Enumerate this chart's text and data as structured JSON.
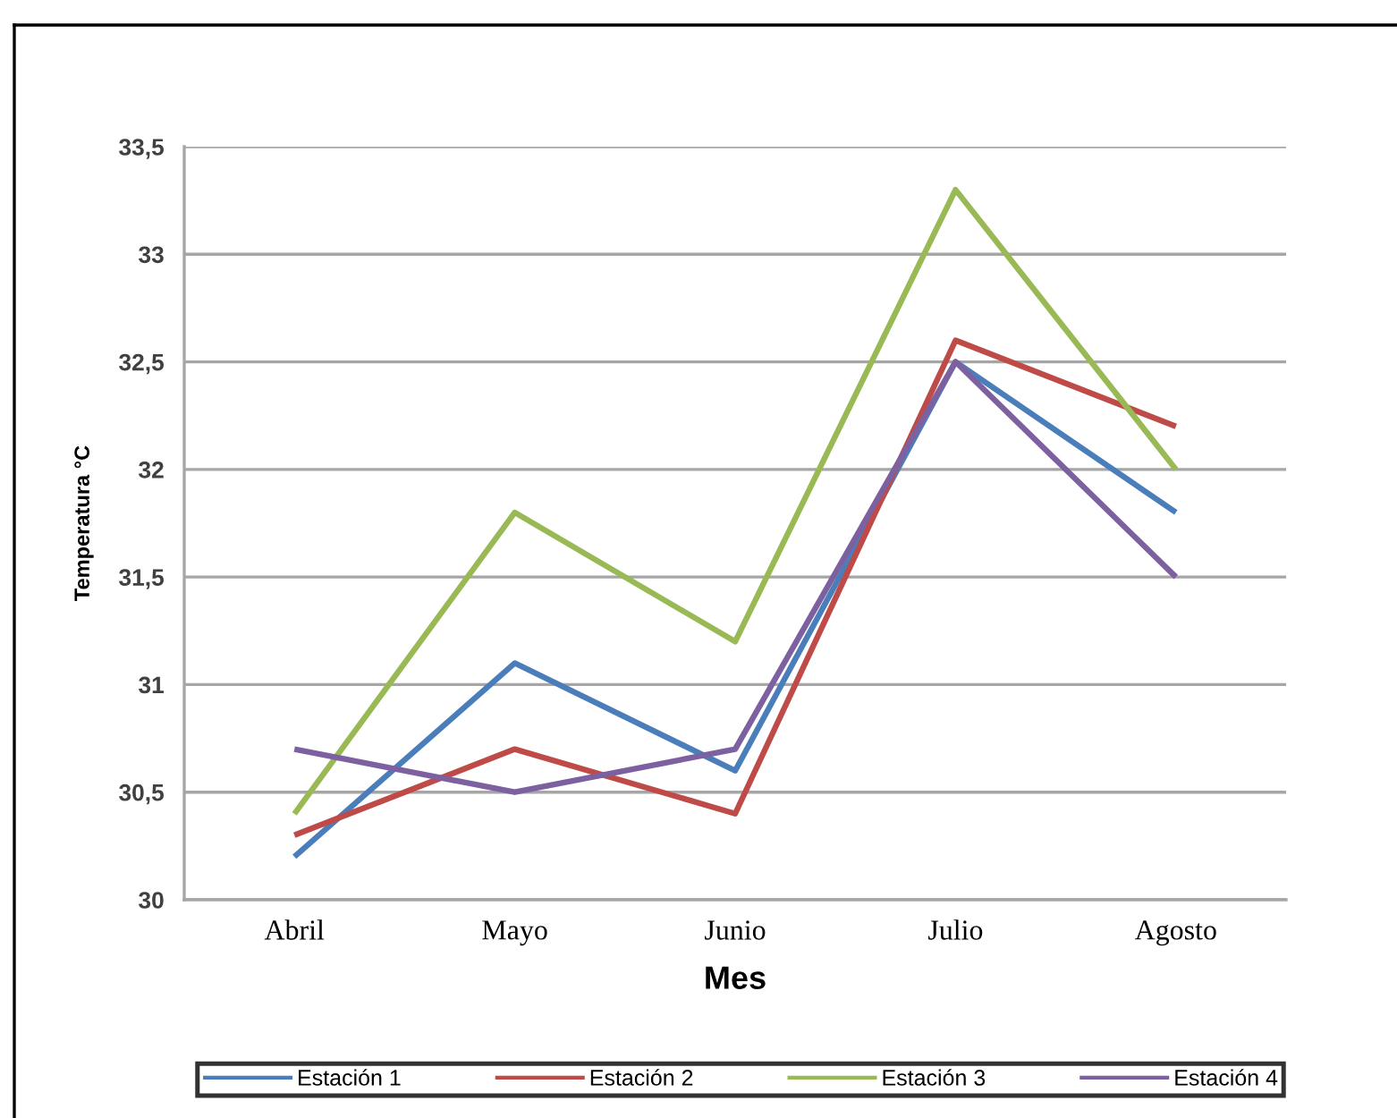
{
  "chart_data": {
    "type": "line",
    "xlabel": "Mes",
    "ylabel": "Temperatura °C",
    "categories": [
      "Abril",
      "Mayo",
      "Junio",
      "Julio",
      "Agosto"
    ],
    "series": [
      {
        "name": "Estación 1",
        "color": "#4a7ebb",
        "values": [
          30.2,
          31.1,
          30.6,
          32.5,
          31.8
        ]
      },
      {
        "name": "Estación 2",
        "color": "#be4b48",
        "values": [
          30.3,
          30.7,
          30.4,
          32.6,
          32.2
        ]
      },
      {
        "name": "Estación 3",
        "color": "#98b954",
        "values": [
          30.4,
          31.8,
          31.2,
          33.3,
          32.0
        ]
      },
      {
        "name": "Estación 4",
        "color": "#7d60a0",
        "values": [
          30.7,
          30.5,
          30.7,
          32.5,
          31.5
        ]
      }
    ],
    "ylim": [
      30,
      33.5
    ],
    "yticks": [
      30,
      {
        "value": 30.5,
        "label": "30,5"
      },
      31,
      {
        "value": 31.5,
        "label": "31,5"
      },
      32,
      {
        "value": 32.5,
        "label": "32,5"
      },
      33,
      {
        "value": 33.5,
        "label": "33,5"
      }
    ],
    "grid": "y",
    "legend": "bottom",
    "marker": "none",
    "line_style": "solid"
  }
}
